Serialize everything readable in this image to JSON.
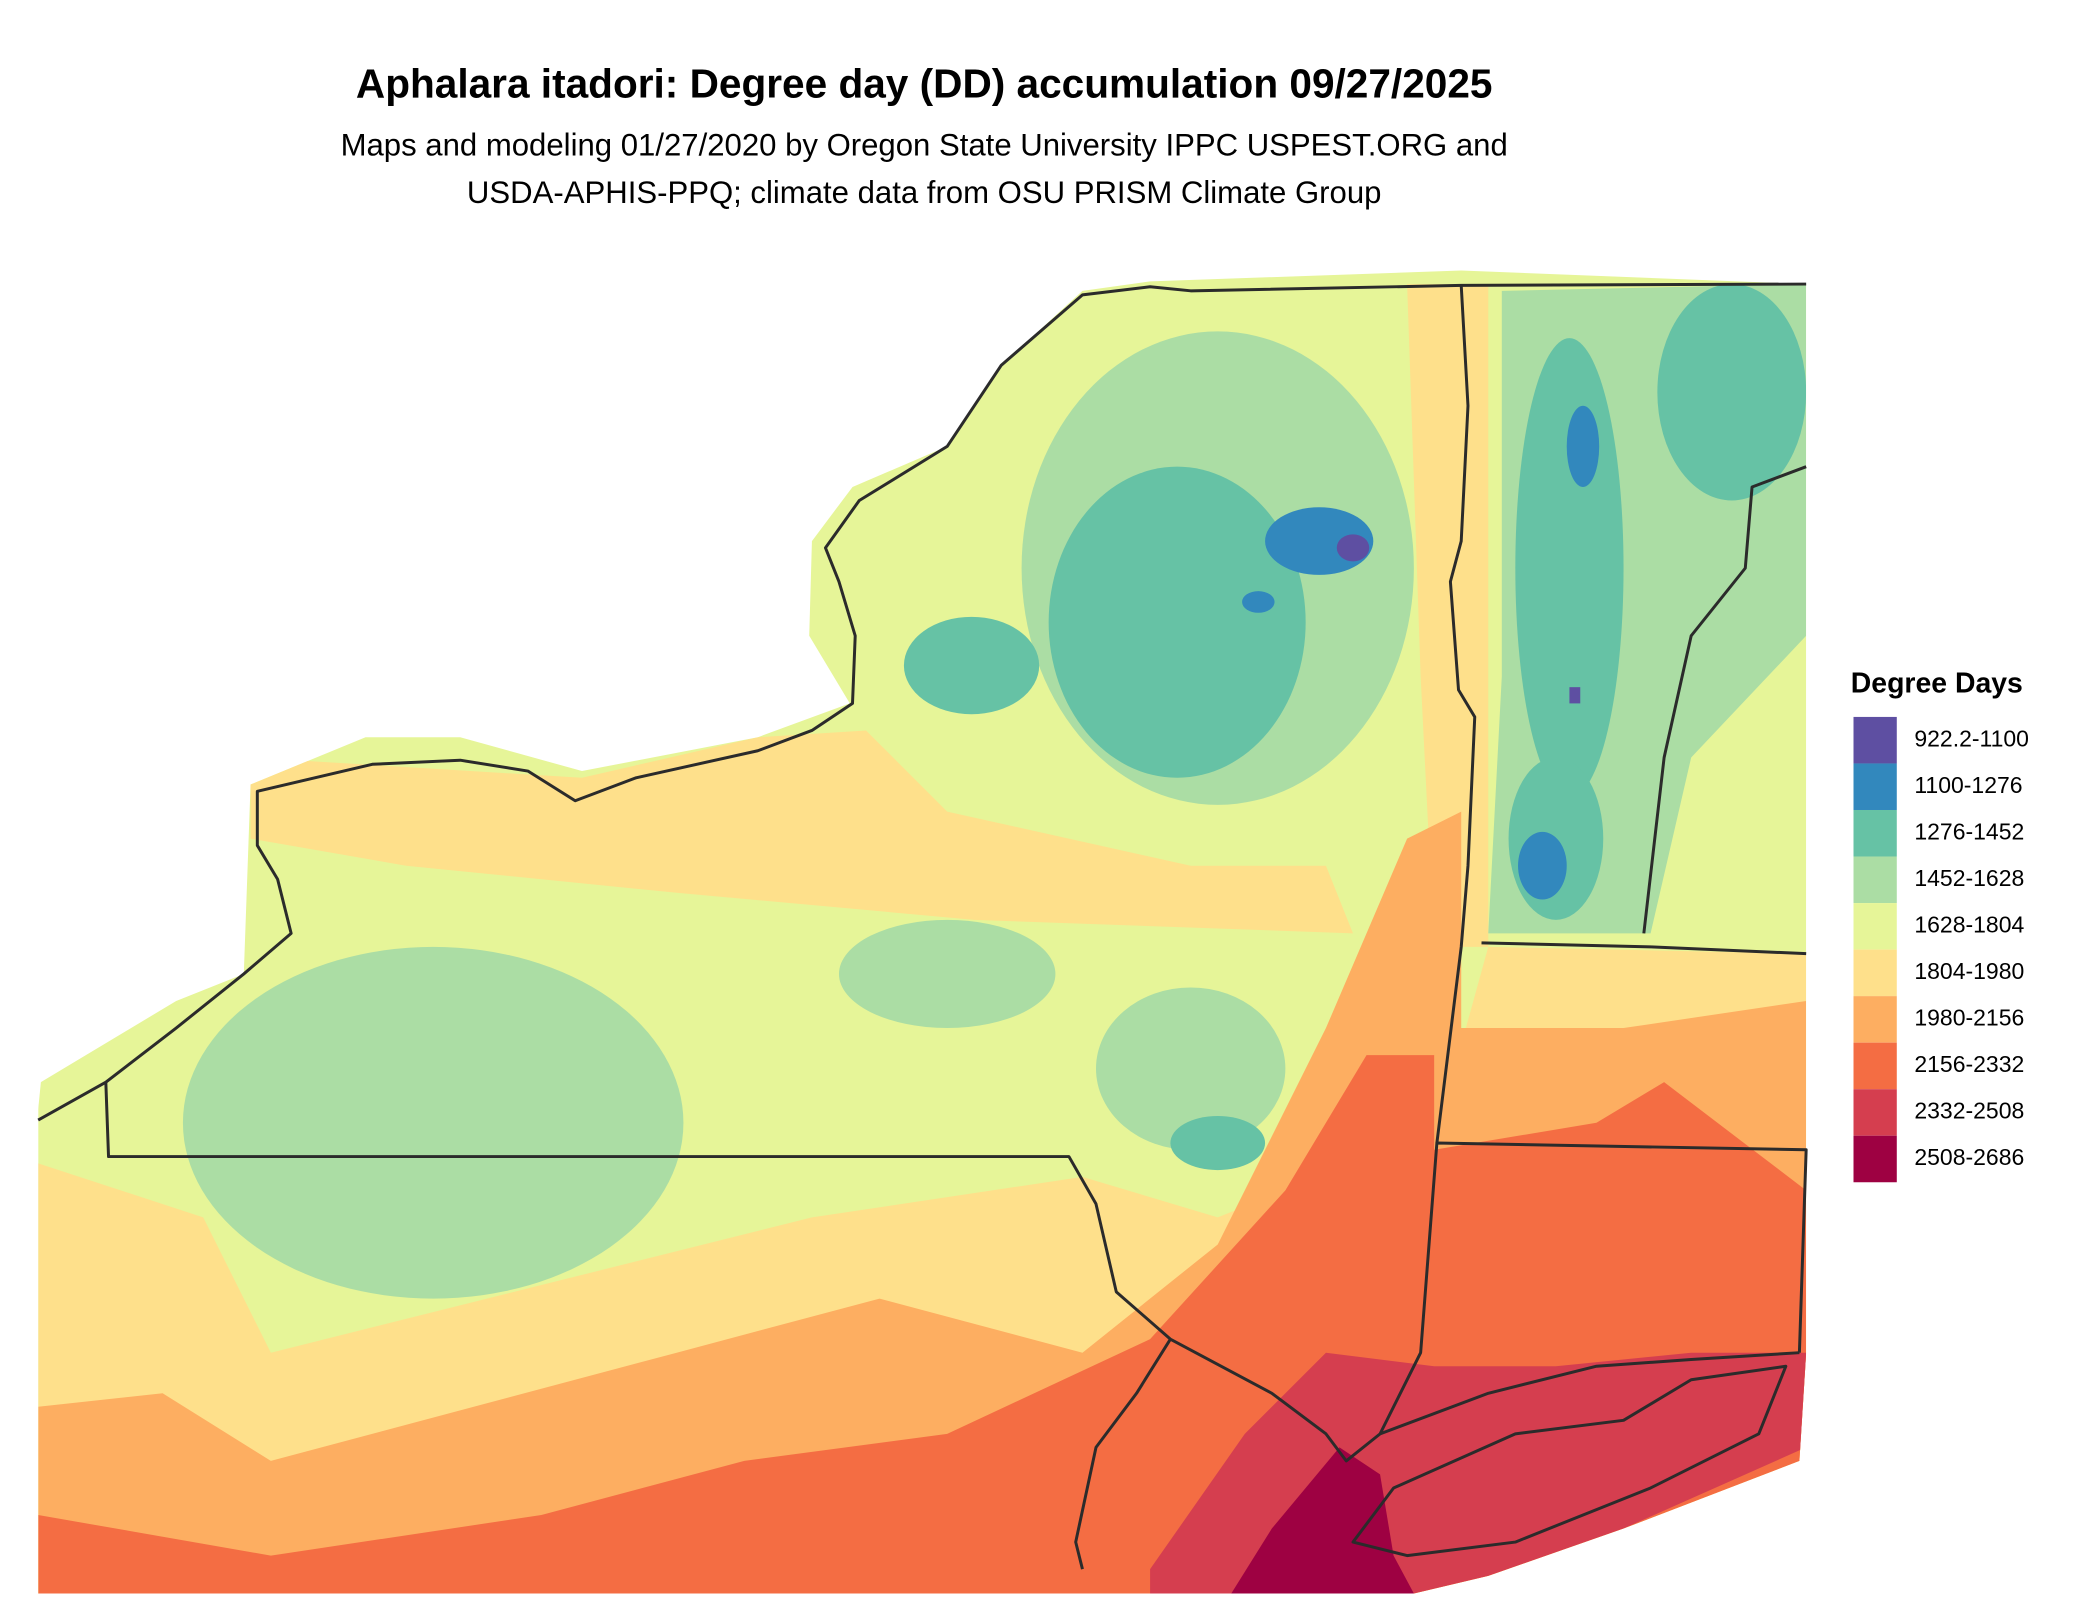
{
  "title": "Aphalara itadori: Degree day (DD) accumulation 09/27/2025",
  "subtitle": [
    "Maps and modeling 01/27/2020 by Oregon State University IPPC USPEST.ORG and",
    "USDA-APHIS-PPQ; climate data from OSU PRISM Climate Group"
  ],
  "legend": {
    "title": "Degree Days",
    "items": [
      {
        "label": "922.2-1100",
        "color": "#5e4fa2"
      },
      {
        "label": "1100-1276",
        "color": "#3288bd"
      },
      {
        "label": "1276-1452",
        "color": "#66c2a5"
      },
      {
        "label": "1452-1628",
        "color": "#abdda4"
      },
      {
        "label": "1628-1804",
        "color": "#e6f598"
      },
      {
        "label": "1804-1980",
        "color": "#fee08b"
      },
      {
        "label": "1980-2156",
        "color": "#fdae61"
      },
      {
        "label": "2156-2332",
        "color": "#f46d43"
      },
      {
        "label": "2332-2508",
        "color": "#d53e4f"
      },
      {
        "label": "2508-2686",
        "color": "#9e0142"
      }
    ]
  }
}
